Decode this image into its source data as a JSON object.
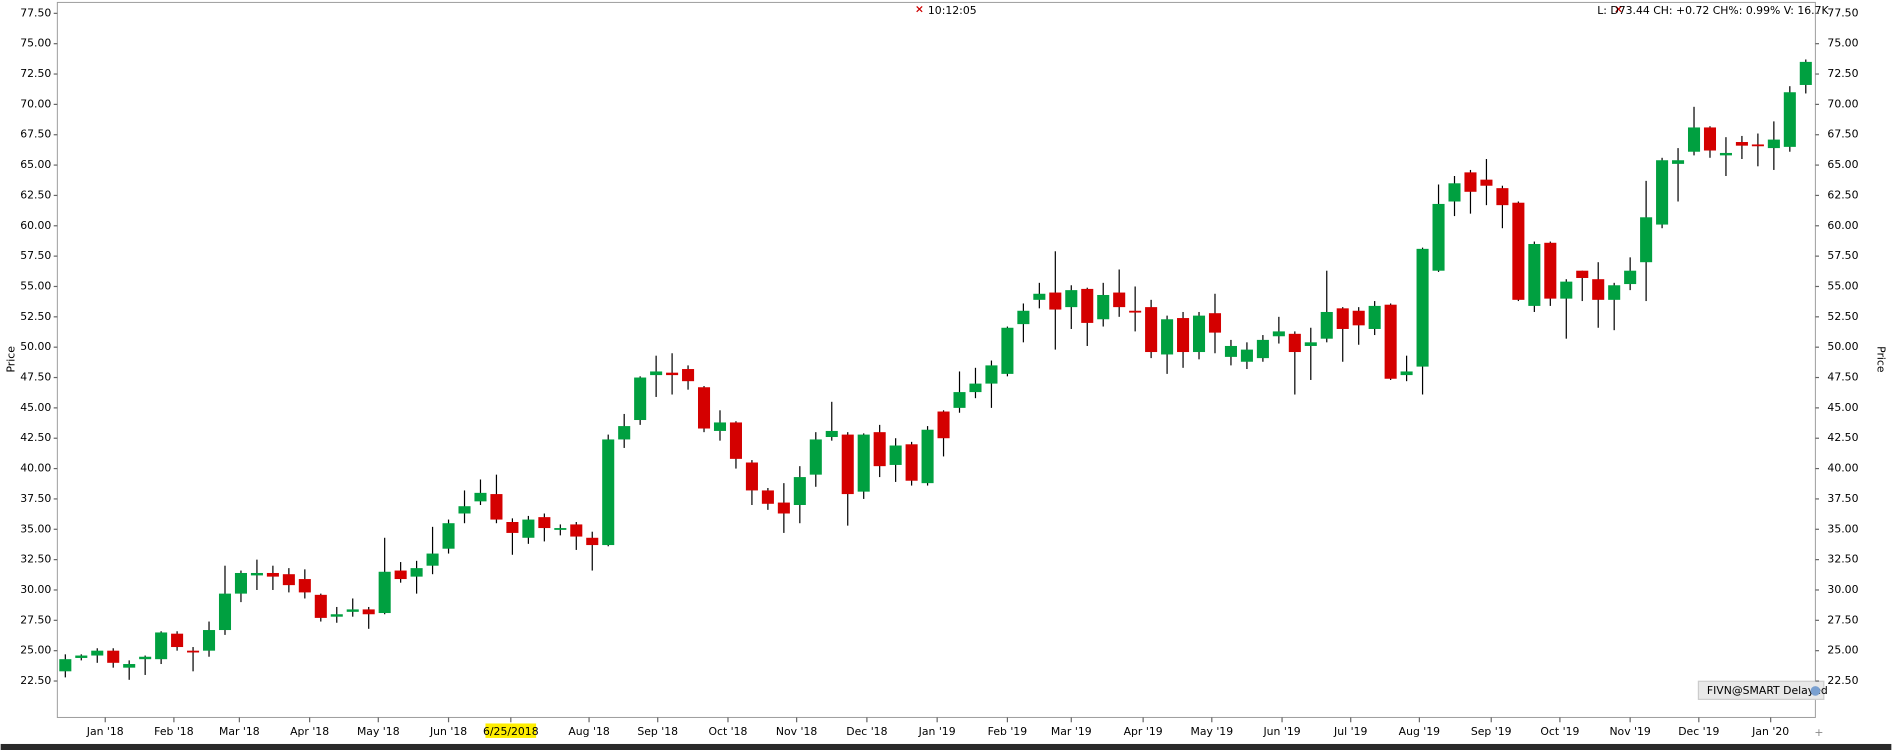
{
  "chart_data": {
    "type": "candlestick",
    "time": "10:12:05",
    "quote_line": "L: D73.44 CH: +0.72 CH%: 0.99% V: 16.7K",
    "source": "FIVN@SMART Delayed",
    "y_label": "Price",
    "up_color": "#00a040",
    "down_color": "#d40000",
    "open": [
      23.3,
      24.4,
      24.6,
      25.0,
      23.6,
      24.3,
      24.3,
      26.4,
      25.0,
      25.0,
      26.7,
      29.7,
      31.2,
      31.4,
      31.3,
      30.9,
      29.6,
      27.8,
      28.2,
      28.4,
      28.1,
      31.6,
      31.1,
      32.0,
      33.4,
      36.3,
      37.3,
      37.9,
      35.6,
      34.3,
      36.0,
      35.0,
      35.4,
      34.3,
      33.7,
      42.4,
      44.0,
      47.7,
      47.9,
      48.2,
      46.7,
      43.1,
      43.8,
      40.5,
      38.2,
      37.2,
      37.0,
      39.5,
      42.6,
      42.8,
      38.1,
      43.0,
      40.3,
      42.0,
      38.8,
      44.7,
      45.0,
      46.3,
      47.0,
      47.8,
      51.9,
      53.9,
      54.5,
      53.3,
      54.8,
      52.3,
      54.5,
      53.0,
      53.3,
      49.4,
      52.4,
      49.6,
      52.8,
      49.2,
      48.8,
      49.1,
      50.9,
      51.1,
      50.1,
      50.7,
      53.2,
      53.0,
      51.5,
      53.5,
      47.7,
      48.4,
      56.3,
      62.0,
      64.4,
      63.8,
      63.1,
      61.9,
      53.4,
      58.6,
      54.0,
      56.3,
      55.6,
      53.9,
      55.2,
      57.0,
      60.1,
      65.1,
      66.1,
      68.1,
      65.8,
      66.9,
      66.7,
      66.4,
      66.5,
      71.6
    ],
    "high": [
      24.7,
      24.7,
      25.2,
      25.2,
      24.2,
      24.6,
      26.6,
      26.6,
      25.3,
      27.4,
      32.0,
      31.6,
      32.5,
      32.0,
      31.8,
      31.7,
      29.7,
      28.6,
      29.3,
      28.6,
      34.3,
      32.3,
      32.4,
      35.2,
      35.8,
      38.2,
      39.1,
      39.5,
      35.9,
      36.1,
      36.3,
      35.4,
      35.6,
      34.8,
      42.8,
      44.5,
      47.6,
      49.3,
      49.5,
      48.5,
      46.8,
      44.8,
      43.9,
      40.7,
      38.4,
      38.8,
      40.2,
      43.0,
      45.5,
      43.0,
      42.9,
      43.6,
      42.5,
      42.2,
      43.5,
      44.8,
      48.0,
      48.3,
      48.9,
      51.7,
      53.6,
      55.3,
      57.9,
      55.1,
      54.9,
      55.3,
      56.4,
      55.0,
      53.9,
      52.6,
      52.9,
      52.9,
      54.4,
      50.6,
      50.4,
      51.0,
      52.5,
      51.3,
      51.6,
      56.3,
      53.3,
      53.3,
      53.8,
      53.6,
      49.3,
      58.2,
      63.4,
      64.1,
      64.6,
      65.5,
      63.3,
      62.0,
      58.7,
      58.7,
      55.6,
      56.3,
      57.0,
      55.3,
      57.4,
      63.7,
      65.6,
      66.4,
      69.8,
      68.2,
      67.3,
      67.4,
      67.6,
      68.6,
      71.5,
      73.7
    ],
    "low": [
      22.8,
      24.2,
      24.0,
      23.6,
      22.6,
      23.0,
      23.9,
      25.0,
      23.3,
      24.5,
      26.3,
      29.0,
      30.0,
      30.0,
      29.8,
      29.3,
      27.4,
      27.3,
      27.8,
      26.8,
      28.0,
      30.6,
      29.7,
      31.3,
      33.0,
      35.5,
      37.0,
      35.5,
      32.9,
      33.8,
      34.0,
      34.5,
      33.3,
      31.6,
      33.6,
      41.7,
      43.6,
      45.9,
      46.1,
      46.5,
      43.0,
      42.3,
      40.0,
      37.0,
      36.6,
      34.7,
      35.5,
      38.5,
      42.3,
      35.3,
      37.5,
      39.3,
      38.9,
      38.6,
      38.6,
      41.0,
      44.6,
      45.8,
      45.0,
      47.6,
      50.4,
      53.2,
      49.8,
      51.5,
      50.1,
      51.7,
      52.5,
      51.3,
      49.1,
      47.8,
      48.3,
      49.0,
      49.5,
      48.5,
      48.2,
      48.8,
      50.3,
      46.1,
      47.3,
      50.4,
      48.8,
      50.2,
      51.0,
      47.3,
      47.2,
      46.1,
      56.2,
      60.8,
      61.0,
      61.7,
      59.8,
      53.8,
      52.9,
      53.4,
      50.7,
      53.8,
      51.6,
      51.4,
      54.7,
      53.8,
      59.8,
      62.0,
      65.8,
      65.6,
      64.1,
      65.5,
      64.9,
      64.6,
      66.1,
      70.9
    ],
    "close": [
      24.3,
      24.6,
      25.0,
      24.0,
      23.9,
      24.5,
      26.5,
      25.3,
      24.9,
      26.7,
      29.7,
      31.4,
      31.4,
      31.1,
      30.4,
      29.8,
      27.7,
      28.0,
      28.4,
      28.0,
      31.5,
      30.9,
      31.8,
      33.0,
      35.5,
      36.9,
      38.0,
      35.8,
      34.7,
      35.8,
      35.1,
      35.1,
      34.4,
      33.7,
      42.4,
      43.5,
      47.5,
      48.0,
      47.7,
      47.2,
      43.3,
      43.8,
      40.8,
      38.2,
      37.1,
      36.3,
      39.3,
      42.4,
      43.1,
      37.9,
      42.8,
      40.2,
      41.9,
      39.0,
      43.2,
      42.5,
      46.3,
      47.0,
      48.5,
      51.6,
      53.0,
      54.4,
      53.1,
      54.7,
      52.0,
      54.3,
      53.3,
      52.9,
      49.6,
      52.3,
      49.6,
      52.6,
      51.2,
      50.1,
      49.8,
      50.6,
      51.3,
      49.6,
      50.4,
      52.9,
      51.5,
      51.8,
      53.4,
      47.4,
      48.0,
      58.1,
      61.8,
      63.5,
      62.8,
      63.3,
      61.7,
      53.9,
      58.5,
      54.0,
      55.4,
      55.7,
      53.9,
      55.1,
      56.3,
      60.7,
      65.4,
      65.4,
      68.1,
      66.2,
      66.0,
      66.6,
      66.6,
      67.1,
      71.0,
      73.5
    ],
    "xlim": [
      -0.5,
      109.6
    ],
    "xticks": [
      {
        "value": 2.5,
        "label": "Jan '18"
      },
      {
        "value": 6.8,
        "label": "Feb '18"
      },
      {
        "value": 10.9,
        "label": "Mar '18"
      },
      {
        "value": 15.3,
        "label": "Apr '18"
      },
      {
        "value": 19.6,
        "label": "May '18"
      },
      {
        "value": 24.0,
        "label": "Jun '18"
      },
      {
        "value": 27.9,
        "label": "6/25/2018"
      },
      {
        "value": 32.8,
        "label": "Aug '18"
      },
      {
        "value": 37.1,
        "label": "Sep '18"
      },
      {
        "value": 41.5,
        "label": "Oct '18"
      },
      {
        "value": 45.8,
        "label": "Nov '18"
      },
      {
        "value": 50.2,
        "label": "Dec '18"
      },
      {
        "value": 54.6,
        "label": "Jan '19"
      },
      {
        "value": 59.0,
        "label": "Feb '19"
      },
      {
        "value": 63.0,
        "label": "Mar '19"
      },
      {
        "value": 67.5,
        "label": "Apr '19"
      },
      {
        "value": 71.8,
        "label": "May '19"
      },
      {
        "value": 76.2,
        "label": "Jun '19"
      },
      {
        "value": 80.5,
        "label": "Jul '19"
      },
      {
        "value": 84.8,
        "label": "Aug '19"
      },
      {
        "value": 89.3,
        "label": "Sep '19"
      },
      {
        "value": 93.6,
        "label": "Oct '19"
      },
      {
        "value": 98.0,
        "label": "Nov '19"
      },
      {
        "value": 102.3,
        "label": "Dec '19"
      },
      {
        "value": 106.8,
        "label": "Jan '20"
      }
    ],
    "highlighted_xtick": 6,
    "ylim": [
      19.5,
      78.4
    ],
    "yticks": [
      {
        "value": 22.5,
        "label": "22.50"
      },
      {
        "value": 25,
        "label": "25.00"
      },
      {
        "value": 27.5,
        "label": "27.50"
      },
      {
        "value": 30,
        "label": "30.00"
      },
      {
        "value": 32.5,
        "label": "32.50"
      },
      {
        "value": 35,
        "label": "35.00"
      },
      {
        "value": 37.5,
        "label": "37.50"
      },
      {
        "value": 40,
        "label": "40.00"
      },
      {
        "value": 42.5,
        "label": "42.50"
      },
      {
        "value": 45,
        "label": "45.00"
      },
      {
        "value": 47.5,
        "label": "47.50"
      },
      {
        "value": 50,
        "label": "50.00"
      },
      {
        "value": 52.5,
        "label": "52.50"
      },
      {
        "value": 55,
        "label": "55.00"
      },
      {
        "value": 57.5,
        "label": "57.50"
      },
      {
        "value": 60,
        "label": "60.00"
      },
      {
        "value": 62.5,
        "label": "62.50"
      },
      {
        "value": 65,
        "label": "65.00"
      },
      {
        "value": 67.5,
        "label": "67.50"
      },
      {
        "value": 70,
        "label": "70.00"
      },
      {
        "value": 72.5,
        "label": "72.50"
      },
      {
        "value": 75,
        "label": "75.00"
      },
      {
        "value": 77.5,
        "label": "77.50"
      }
    ]
  }
}
